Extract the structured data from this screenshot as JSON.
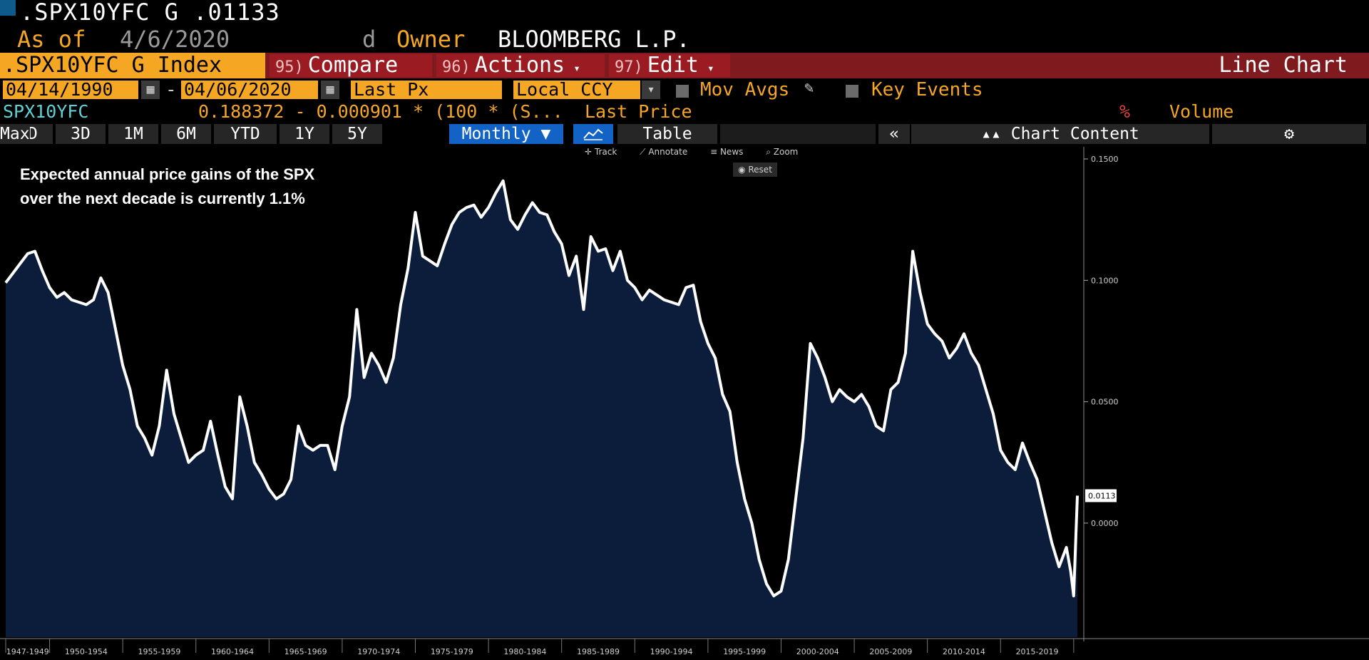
{
  "header": {
    "ticker_value": ".SPX10YFC G  .01133",
    "as_of_label": "As of",
    "as_of_date": "4/6/2020",
    "d_label": "d",
    "owner_label": "Owner",
    "owner_name": "BLOOMBERG L.P."
  },
  "menu": {
    "security": ".SPX10YFC G Index",
    "compare_num": "95)",
    "compare": "Compare",
    "actions_num": "96)",
    "actions": "Actions",
    "edit_num": "97)",
    "edit": "Edit",
    "chart_type": "Line Chart"
  },
  "range": {
    "start": "04/14/1990",
    "dash": "-",
    "end": "04/06/2020",
    "field": "Last Px",
    "currency": "Local CCY",
    "mov_avgs": "Mov Avgs",
    "key_events": "Key Events"
  },
  "info": {
    "ticker": "SPX10YFC",
    "formula": "0.188372 - 0.000901 * (100 * (S...",
    "last_price": "Last Price",
    "pct": "%",
    "volume": "Volume"
  },
  "periods": [
    "1D",
    "3D",
    "1M",
    "6M",
    "YTD",
    "1Y",
    "5Y",
    "Max"
  ],
  "frequency": "Monthly",
  "table_label": "Table",
  "chart_content_label": "Chart Content",
  "tools": {
    "track": "Track",
    "annotate": "Annotate",
    "news": "News",
    "zoom": "Zoom",
    "reset": "Reset"
  },
  "colors": {
    "orange": "#f5a623",
    "menu_red": "#7f1a1f",
    "area_fill": "#0b1d3a",
    "line": "#ffffff",
    "active_blue": "#1363c6"
  },
  "chart_data": {
    "type": "area",
    "annotation": [
      "Expected annual price gains of the SPX",
      "over the next decade is currently 1.1%"
    ],
    "last_value_label": "0.0113",
    "y_ticks": [
      0.15,
      0.1,
      0.05,
      0.0
    ],
    "y_tick_labels": [
      "0.1500",
      "0.1000",
      "0.0500",
      "0.0000"
    ],
    "ylim": [
      -0.047,
      0.155
    ],
    "x_tick_labels": [
      "1947-1949",
      "1950-1954",
      "1955-1959",
      "1960-1964",
      "1965-1969",
      "1970-1974",
      "1975-1979",
      "1980-1984",
      "1985-1989",
      "1990-1994",
      "1995-1999",
      "2000-2004",
      "2005-2009",
      "2010-2014",
      "2015-2019"
    ],
    "x_tick_years": [
      1947.0,
      1950.0,
      1955.0,
      1960.0,
      1965.0,
      1970.0,
      1975.0,
      1980.0,
      1985.0,
      1990.0,
      1995.0,
      2000.0,
      2005.0,
      2010.0,
      2015.0,
      2020.0
    ],
    "xlim": [
      1947.0,
      2020.3
    ],
    "series": [
      {
        "x": [
          1947.0,
          1947.5,
          1948.0,
          1948.5,
          1949.0,
          1949.5,
          1950.0,
          1950.5,
          1951.0,
          1951.5,
          1952.0,
          1952.5,
          1953.0,
          1953.5,
          1954.0,
          1954.5,
          1955.0,
          1955.5,
          1956.0,
          1956.5,
          1957.0,
          1957.5,
          1958.0,
          1958.5,
          1959.0,
          1959.5,
          1960.0,
          1960.5,
          1961.0,
          1961.5,
          1962.0,
          1962.5,
          1963.0,
          1963.5,
          1964.0,
          1964.5,
          1965.0,
          1965.5,
          1966.0,
          1966.5,
          1967.0,
          1967.5,
          1968.0,
          1968.5,
          1969.0,
          1969.5,
          1970.0,
          1970.5,
          1971.0,
          1971.5,
          1972.0,
          1972.5,
          1973.0,
          1973.5,
          1974.0,
          1974.5,
          1975.0,
          1975.5,
          1976.0,
          1976.5,
          1977.0,
          1977.5,
          1978.0,
          1978.5,
          1979.0,
          1979.5,
          1980.0,
          1980.5,
          1981.0,
          1981.5,
          1982.0,
          1982.5,
          1983.0,
          1983.5,
          1984.0,
          1984.5,
          1985.0,
          1985.5,
          1986.0,
          1986.5,
          1987.0,
          1987.5,
          1988.0,
          1988.5,
          1989.0,
          1989.5,
          1990.0,
          1990.5,
          1991.0,
          1991.5,
          1992.0,
          1992.5,
          1993.0,
          1993.5,
          1994.0,
          1994.5,
          1995.0,
          1995.5,
          1996.0,
          1996.5,
          1997.0,
          1997.5,
          1998.0,
          1998.5,
          1999.0,
          1999.5,
          2000.0,
          2000.5,
          2001.0,
          2001.5,
          2002.0,
          2002.5,
          2003.0,
          2003.5,
          2004.0,
          2004.5,
          2005.0,
          2005.5,
          2006.0,
          2006.5,
          2007.0,
          2007.5,
          2008.0,
          2008.5,
          2009.0,
          2009.5,
          2010.0,
          2010.5,
          2011.0,
          2011.5,
          2012.0,
          2012.5,
          2013.0,
          2013.5,
          2014.0,
          2014.5,
          2015.0,
          2015.5,
          2016.0,
          2016.5,
          2017.0,
          2017.5,
          2018.0,
          2018.5,
          2019.0,
          2019.5,
          2019.8,
          2020.0,
          2020.25
        ],
        "y": [
          0.099,
          0.103,
          0.107,
          0.111,
          0.112,
          0.104,
          0.097,
          0.093,
          0.095,
          0.092,
          0.091,
          0.09,
          0.092,
          0.101,
          0.095,
          0.08,
          0.065,
          0.055,
          0.04,
          0.035,
          0.028,
          0.04,
          0.063,
          0.045,
          0.035,
          0.025,
          0.028,
          0.03,
          0.042,
          0.028,
          0.015,
          0.01,
          0.052,
          0.04,
          0.025,
          0.02,
          0.014,
          0.01,
          0.012,
          0.018,
          0.04,
          0.032,
          0.03,
          0.032,
          0.032,
          0.022,
          0.04,
          0.052,
          0.088,
          0.06,
          0.07,
          0.065,
          0.058,
          0.068,
          0.09,
          0.105,
          0.128,
          0.11,
          0.108,
          0.106,
          0.115,
          0.123,
          0.128,
          0.13,
          0.131,
          0.126,
          0.13,
          0.136,
          0.141,
          0.125,
          0.121,
          0.127,
          0.132,
          0.128,
          0.127,
          0.12,
          0.115,
          0.102,
          0.11,
          0.088,
          0.118,
          0.112,
          0.113,
          0.104,
          0.112,
          0.1,
          0.097,
          0.092,
          0.096,
          0.094,
          0.092,
          0.091,
          0.09,
          0.097,
          0.098,
          0.083,
          0.074,
          0.068,
          0.053,
          0.046,
          0.025,
          0.01,
          0.0,
          -0.015,
          -0.025,
          -0.03,
          -0.028,
          -0.015,
          0.01,
          0.035,
          0.074,
          0.068,
          0.06,
          0.05,
          0.055,
          0.052,
          0.05,
          0.053,
          0.048,
          0.04,
          0.038,
          0.055,
          0.058,
          0.07,
          0.112,
          0.095,
          0.082,
          0.078,
          0.075,
          0.068,
          0.072,
          0.078,
          0.07,
          0.065,
          0.055,
          0.045,
          0.03,
          0.025,
          0.022,
          0.033,
          0.025,
          0.018,
          0.005,
          -0.008,
          -0.018,
          -0.01,
          -0.02,
          -0.03,
          0.0113
        ]
      }
    ],
    "grid": false,
    "legend": "none"
  }
}
